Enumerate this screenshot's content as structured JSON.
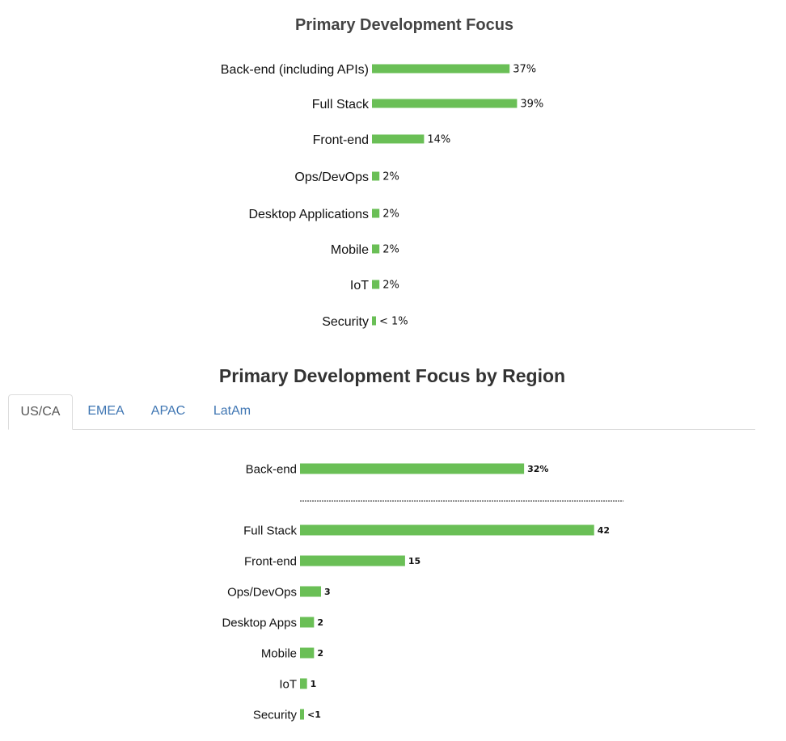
{
  "colors": {
    "bar": "#6abf56",
    "tab_link": "#3f76b3",
    "tab_active": "#555555",
    "divider": "#222222"
  },
  "chart_data": [
    {
      "type": "bar",
      "orientation": "horizontal",
      "title": "Primary Development Focus",
      "categories": [
        "Back-end (including APIs)",
        "Full Stack",
        "Front-end",
        "Ops/DevOps",
        "Desktop Applications",
        "Mobile",
        "IoT",
        "Security"
      ],
      "values": [
        37,
        39,
        14,
        2,
        2,
        2,
        2,
        0.5
      ],
      "value_labels": [
        "37%",
        "39%",
        "14%",
        "2%",
        "2%",
        "2%",
        "2%",
        "< 1%"
      ],
      "xlim": [
        0,
        100
      ],
      "grid": false,
      "legend": "none"
    },
    {
      "type": "bar",
      "orientation": "horizontal",
      "title": "Primary Development Focus by Region",
      "categories": [
        "Back-end",
        "Full Stack",
        "Front-end",
        "Ops/DevOps",
        "Desktop Apps",
        "Mobile",
        "IoT",
        "Security"
      ],
      "values": [
        32,
        42,
        15,
        3,
        2,
        2,
        1,
        0.5
      ],
      "value_labels": [
        "32%",
        "42",
        "15",
        "3",
        "2",
        "2",
        "1",
        "<1"
      ],
      "xlim": [
        0,
        50
      ],
      "grid": false,
      "legend": "none",
      "divider_after_first": true
    }
  ],
  "tabs": [
    {
      "label": "US/CA",
      "active": true
    },
    {
      "label": "EMEA",
      "active": false
    },
    {
      "label": "APAC",
      "active": false
    },
    {
      "label": "LatAm",
      "active": false
    }
  ]
}
